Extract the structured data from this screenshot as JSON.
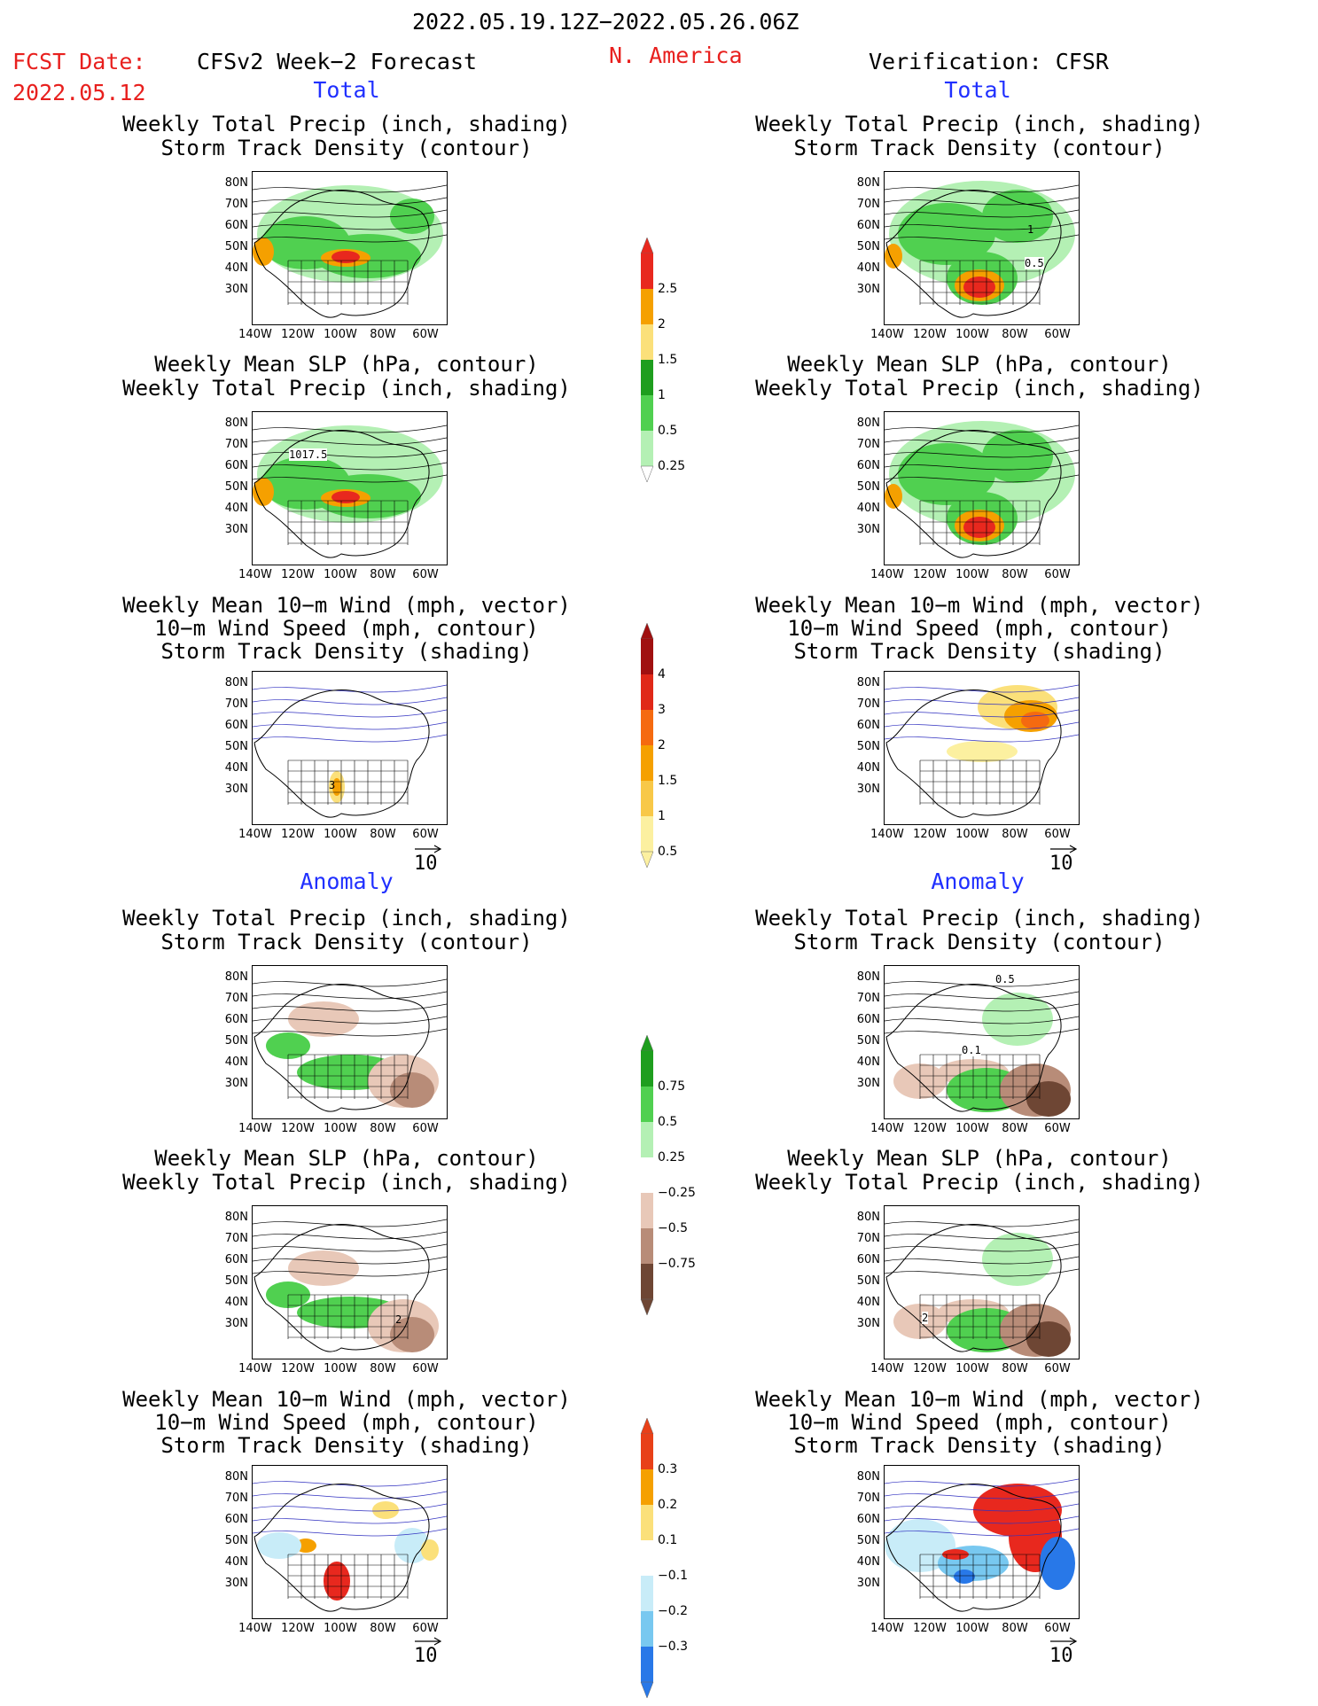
{
  "header": {
    "period": "2022.05.19.12Z−2022.05.26.06Z",
    "fcst_label": "FCST Date:",
    "fcst_date": "2022.05.12",
    "forecast_title": "CFSv2 Week−2 Forecast",
    "region": "N. America",
    "verification_title": "Verification: CFSR"
  },
  "sections": {
    "total": "Total",
    "anomaly": "Anomaly"
  },
  "panel_titles": {
    "precip_track": [
      "Weekly Total Precip (inch, shading)",
      "Storm Track Density (contour)"
    ],
    "slp_precip": [
      "Weekly Mean SLP (hPa, contour)",
      "Weekly Total Precip (inch, shading)"
    ],
    "wind_track": [
      "Weekly Mean 10−m Wind (mph, vector)",
      "10−m Wind Speed (mph, contour)",
      "Storm Track Density (shading)"
    ]
  },
  "axes": {
    "lat_labels": [
      "80N",
      "70N",
      "60N",
      "50N",
      "40N",
      "30N"
    ],
    "lon_labels": [
      "140W",
      "120W",
      "100W",
      "80W",
      "60W"
    ]
  },
  "map_annotations": {
    "fcst_total_slp_label": "1017.5",
    "ver_total_track_label": "0.5",
    "ver_total_track_label2": "1",
    "ver_anom_track_label": "0.1",
    "ver_anom_track_label2": "0.5",
    "fcst_total_wind_label": "3",
    "fcst_anom_slp_label": "2",
    "ver_anom_slp_label": "2"
  },
  "vector_reference": "10",
  "colorbars": {
    "total_precip": {
      "labels": [
        "2.5",
        "2",
        "1.5",
        "1",
        "0.5",
        "0.25"
      ],
      "colors": [
        "#e8281e",
        "#f5a000",
        "#fbe07a",
        "#1e9e1e",
        "#50d050",
        "#b4f0b4"
      ]
    },
    "total_track": {
      "labels": [
        "4",
        "3",
        "2",
        "1.5",
        "1",
        "0.5"
      ],
      "colors": [
        "#a01010",
        "#e02818",
        "#f56a10",
        "#f5a000",
        "#f8c848",
        "#fcf0a0"
      ]
    },
    "anom_precip": {
      "labels": [
        "0.75",
        "0.5",
        "0.25",
        "−0.25",
        "−0.5",
        "−0.75"
      ],
      "colors": [
        "#1e9e1e",
        "#50d050",
        "#b4f0b4",
        "#ffffff",
        "#e8c8b8",
        "#b88c78",
        "#6e4634"
      ]
    },
    "anom_track": {
      "labels": [
        "0.3",
        "0.2",
        "0.1",
        "−0.1",
        "−0.2",
        "−0.3"
      ],
      "colors": [
        "#e84018",
        "#f5a000",
        "#fbe07a",
        "#ffffff",
        "#c8ecf8",
        "#78c8f0",
        "#2878e8"
      ]
    }
  }
}
